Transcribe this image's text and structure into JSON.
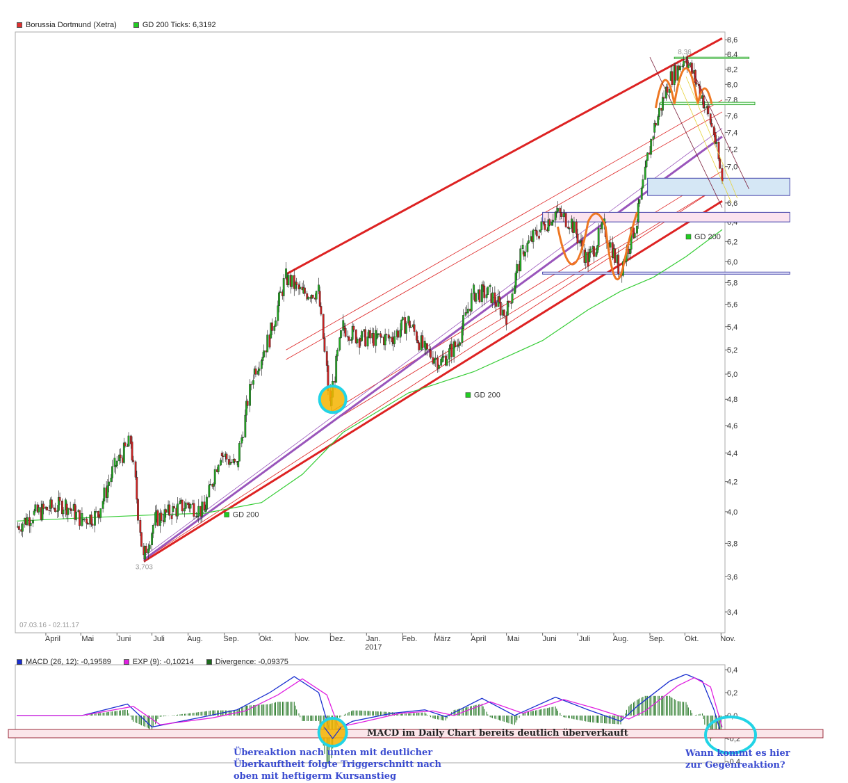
{
  "legend_main": [
    {
      "label": "Borussia Dortmund (Xetra)",
      "color": "#e03030"
    },
    {
      "label": "GD 200 Ticks: 6,3192",
      "color": "#22cc22"
    }
  ],
  "legend_macd": [
    {
      "label": "MACD (26, 12): -0,19589",
      "color": "#1a2fd0"
    },
    {
      "label": "EXP (9): -0,10214",
      "color": "#e020e0"
    },
    {
      "label": "Divergence: -0,09375",
      "color": "#1e6b1e"
    }
  ],
  "date_range": "07.03.16 - 02.11.17",
  "annotations": {
    "macd_box": "MACD im Daily Chart bereits deutlich überverkauft",
    "left_note": [
      "Übereaktion nach unten mit deutlicher",
      "Überkauftheit folgte Triggerschnitt nach",
      "oben mit heftigerm Kursanstieg"
    ],
    "right_note": [
      "Wann kommt es hier",
      "zur Gegenreaktion?"
    ]
  },
  "colors": {
    "price_up": "#22aa22",
    "price_down": "#cc2222",
    "sma": "#33cc33",
    "channel": "#dd2222",
    "trend": "#9955bb",
    "orange": "#ee7722",
    "cyan": "#22d4e6",
    "macd": "#1a2fd0",
    "signal": "#e020e0",
    "divergence": "#2e7d2e"
  },
  "chart_data": [
    {
      "type": "line",
      "title": "Borussia Dortmund (Xetra)",
      "series": [
        {
          "name": "Borussia Dortmund (Xetra)",
          "points": [
            [
              "2016-03-07",
              3.9
            ],
            [
              "2016-03-21",
              3.98
            ],
            [
              "2016-04-04",
              4.02
            ],
            [
              "2016-04-18",
              4.05
            ],
            [
              "2016-05-02",
              3.95
            ],
            [
              "2016-05-16",
              3.98
            ],
            [
              "2016-05-30",
              4.3
            ],
            [
              "2016-06-13",
              4.48
            ],
            [
              "2016-06-24",
              3.703
            ],
            [
              "2016-07-04",
              3.95
            ],
            [
              "2016-07-18",
              4.0
            ],
            [
              "2016-08-01",
              4.05
            ],
            [
              "2016-08-15",
              4.0
            ],
            [
              "2016-08-29",
              4.4
            ],
            [
              "2016-09-12",
              4.3
            ],
            [
              "2016-09-26",
              5.0
            ],
            [
              "2016-10-10",
              5.3
            ],
            [
              "2016-10-24",
              5.85
            ],
            [
              "2016-11-07",
              5.7
            ],
            [
              "2016-11-21",
              5.72
            ],
            [
              "2016-12-01",
              4.75
            ],
            [
              "2016-12-12",
              5.4
            ],
            [
              "2016-12-26",
              5.3
            ],
            [
              "2017-01-09",
              5.3
            ],
            [
              "2017-01-23",
              5.3
            ],
            [
              "2017-02-06",
              5.45
            ],
            [
              "2017-02-20",
              5.2
            ],
            [
              "2017-03-06",
              5.1
            ],
            [
              "2017-03-20",
              5.25
            ],
            [
              "2017-04-03",
              5.7
            ],
            [
              "2017-04-17",
              5.7
            ],
            [
              "2017-05-01",
              5.5
            ],
            [
              "2017-05-15",
              6.1
            ],
            [
              "2017-05-29",
              6.3
            ],
            [
              "2017-06-12",
              6.5
            ],
            [
              "2017-06-26",
              6.4
            ],
            [
              "2017-07-10",
              6.0
            ],
            [
              "2017-07-24",
              6.35
            ],
            [
              "2017-08-07",
              5.9
            ],
            [
              "2017-08-21",
              6.4
            ],
            [
              "2017-09-04",
              7.4
            ],
            [
              "2017-09-18",
              8.05
            ],
            [
              "2017-10-02",
              8.36
            ],
            [
              "2017-10-16",
              7.85
            ],
            [
              "2017-10-26",
              7.4
            ],
            [
              "2017-11-02",
              6.85
            ]
          ]
        },
        {
          "name": "GD 200",
          "points": [
            [
              "2016-03-07",
              3.94
            ],
            [
              "2016-05-02",
              3.96
            ],
            [
              "2016-07-04",
              3.98
            ],
            [
              "2016-08-15",
              3.99
            ],
            [
              "2016-10-03",
              4.06
            ],
            [
              "2016-11-07",
              4.25
            ],
            [
              "2016-12-12",
              4.55
            ],
            [
              "2017-02-06",
              4.85
            ],
            [
              "2017-04-03",
              5.02
            ],
            [
              "2017-06-01",
              5.28
            ],
            [
              "2017-07-10",
              5.55
            ],
            [
              "2017-08-07",
              5.72
            ],
            [
              "2017-09-04",
              5.85
            ],
            [
              "2017-10-02",
              6.05
            ],
            [
              "2017-11-02",
              6.32
            ]
          ]
        }
      ],
      "annotations": [
        "8,36",
        "3,703",
        "GD 200",
        "GD 200",
        "GD 200"
      ],
      "x_ticks": [
        "April",
        "Mai",
        "Juni",
        "Juli",
        "Aug.",
        "Sep.",
        "Okt.",
        "Nov.",
        "Dez.",
        "Jan.",
        "Feb.",
        "März",
        "April",
        "Mai",
        "Juni",
        "Juli",
        "Aug.",
        "Sep.",
        "Okt.",
        "Nov."
      ],
      "x_year_label": "2017",
      "y_ticks": [
        "8,6",
        "8,4",
        "8,2",
        "8,0",
        "7,8",
        "7,6",
        "7,4",
        "7,2",
        "7,0",
        "6,8",
        "6,6",
        "6,4",
        "6,2",
        "6,0",
        "5,8",
        "5,6",
        "5,4",
        "5,2",
        "5,0",
        "4,8",
        "4,6",
        "4,4",
        "4,2",
        "4,0",
        "3,8",
        "3,6",
        "3,4"
      ],
      "ylim": [
        3.3,
        8.65
      ],
      "y_scale": "log",
      "legend": "top-left",
      "grid": false
    },
    {
      "type": "line",
      "title": "MACD (26, 12)",
      "series": [
        {
          "name": "MACD (26, 12): -0,19589",
          "points": [
            [
              "2016-03-07",
              0.0
            ],
            [
              "2016-05-02",
              0.0
            ],
            [
              "2016-06-10",
              0.1
            ],
            [
              "2016-07-01",
              -0.1
            ],
            [
              "2016-08-15",
              -0.01
            ],
            [
              "2016-09-12",
              0.05
            ],
            [
              "2016-10-10",
              0.2
            ],
            [
              "2016-10-31",
              0.34
            ],
            [
              "2016-11-21",
              0.2
            ],
            [
              "2016-12-01",
              -0.15
            ],
            [
              "2016-12-20",
              -0.05
            ],
            [
              "2017-01-23",
              0.02
            ],
            [
              "2017-02-20",
              0.05
            ],
            [
              "2017-03-10",
              -0.01
            ],
            [
              "2017-04-10",
              0.15
            ],
            [
              "2017-05-08",
              0.0
            ],
            [
              "2017-06-12",
              0.16
            ],
            [
              "2017-07-10",
              0.05
            ],
            [
              "2017-08-07",
              -0.05
            ],
            [
              "2017-08-21",
              0.08
            ],
            [
              "2017-09-18",
              0.3
            ],
            [
              "2017-10-02",
              0.36
            ],
            [
              "2017-10-16",
              0.3
            ],
            [
              "2017-10-26",
              0.05
            ],
            [
              "2017-11-02",
              -0.196
            ]
          ]
        },
        {
          "name": "EXP (9): -0,10214",
          "points": [
            [
              "2016-03-07",
              0.0
            ],
            [
              "2016-05-02",
              0.0
            ],
            [
              "2016-06-15",
              0.08
            ],
            [
              "2016-07-08",
              -0.08
            ],
            [
              "2016-08-22",
              -0.02
            ],
            [
              "2016-09-19",
              0.04
            ],
            [
              "2016-10-17",
              0.18
            ],
            [
              "2016-11-07",
              0.32
            ],
            [
              "2016-11-28",
              0.18
            ],
            [
              "2016-12-08",
              -0.1
            ],
            [
              "2016-12-27",
              -0.06
            ],
            [
              "2017-01-30",
              0.02
            ],
            [
              "2017-02-27",
              0.04
            ],
            [
              "2017-03-17",
              0.0
            ],
            [
              "2017-04-17",
              0.12
            ],
            [
              "2017-05-15",
              0.02
            ],
            [
              "2017-06-19",
              0.14
            ],
            [
              "2017-07-17",
              0.06
            ],
            [
              "2017-08-14",
              -0.03
            ],
            [
              "2017-08-28",
              0.04
            ],
            [
              "2017-09-25",
              0.26
            ],
            [
              "2017-10-09",
              0.33
            ],
            [
              "2017-10-23",
              0.25
            ],
            [
              "2017-11-02",
              -0.102
            ]
          ]
        },
        {
          "name": "Divergence: -0,09375",
          "points": []
        }
      ],
      "y_ticks": [
        "0,4",
        "0,2",
        "0,0",
        "-0,2",
        "-0,4"
      ],
      "ylim": [
        -0.4,
        0.4
      ],
      "legend": "top-left"
    }
  ]
}
